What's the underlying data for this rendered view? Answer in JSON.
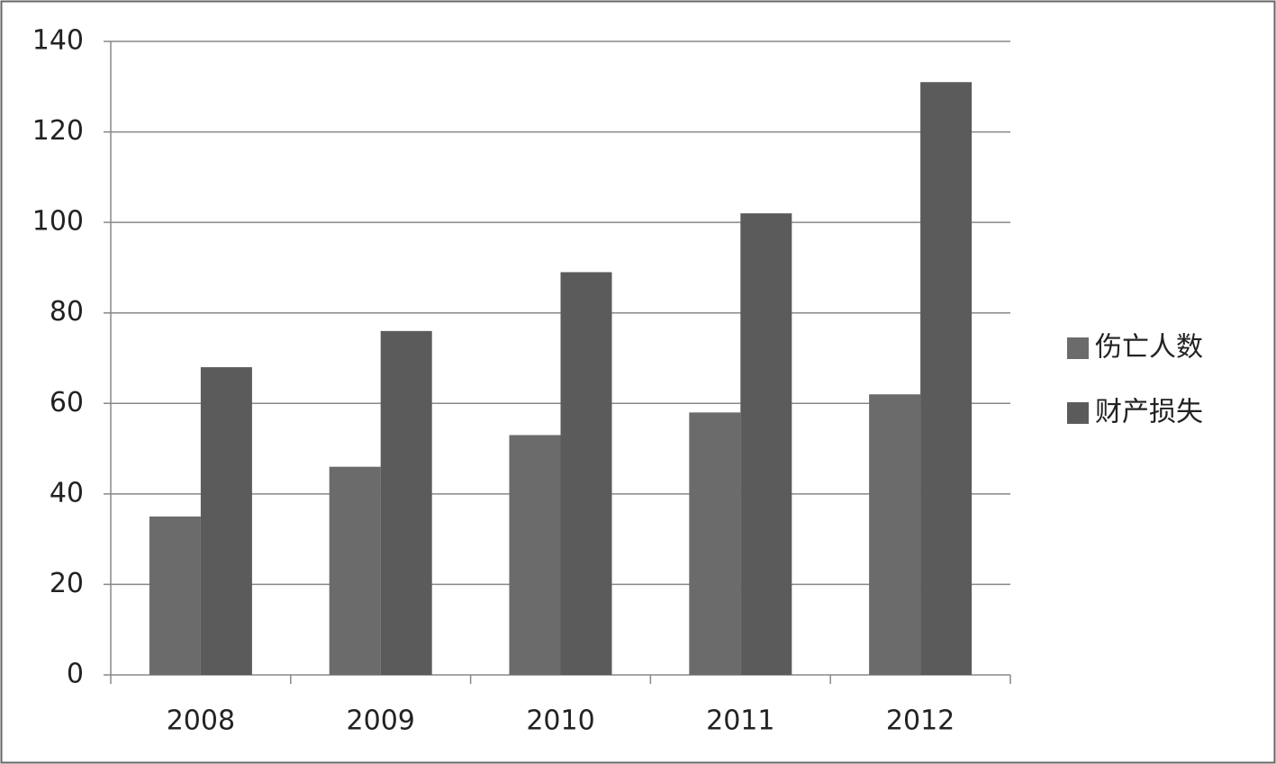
{
  "chart_data": {
    "type": "bar",
    "categories": [
      "2008",
      "2009",
      "2010",
      "2011",
      "2012"
    ],
    "series": [
      {
        "name": "伤亡人数",
        "color": "#6b6b6b",
        "values": [
          35,
          46,
          53,
          58,
          62
        ]
      },
      {
        "name": "财产损失",
        "color": "#5b5b5b",
        "values": [
          68,
          76,
          89,
          102,
          131
        ]
      }
    ],
    "ylim": [
      0,
      140
    ],
    "yticks": [
      0,
      20,
      40,
      60,
      80,
      100,
      120,
      140
    ],
    "grid": true,
    "legend": "right"
  }
}
